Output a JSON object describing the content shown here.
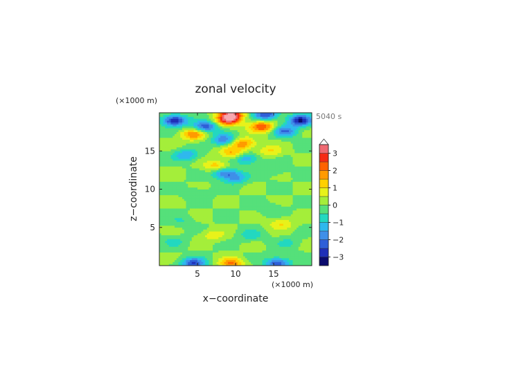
{
  "chart_data": {
    "type": "heatmap",
    "title": "zonal velocity",
    "time_label": "5040 s",
    "xlabel": "x−coordinate",
    "ylabel": "z−coordinate",
    "x_unit": "(×1000 m)",
    "y_unit": "(×1000 m)",
    "xlim": [
      0,
      20
    ],
    "ylim": [
      0,
      20
    ],
    "x_ticks": [
      5,
      10,
      15
    ],
    "x_tick_labels": [
      "5",
      "10",
      "15"
    ],
    "y_ticks": [
      5,
      10,
      15
    ],
    "y_tick_labels": [
      "5",
      "10",
      "15"
    ],
    "colorbar": {
      "levels": [
        -3.5,
        -3,
        -2.5,
        -2,
        -1.5,
        -1,
        -0.5,
        0,
        0.5,
        1,
        1.5,
        2,
        2.5,
        3,
        3.5
      ],
      "colors": [
        "#0b0b6e",
        "#1f2fb8",
        "#2f5fd8",
        "#3f8fe8",
        "#2fb8ee",
        "#22d8c0",
        "#55e07a",
        "#a4ee3a",
        "#e8f21a",
        "#ffd000",
        "#ff9a00",
        "#ff6200",
        "#f52a14",
        "#ef6a72",
        "#f7a8b0"
      ],
      "extend_top": true,
      "tick_values": [
        -3,
        -2,
        -1,
        0,
        1,
        2,
        3
      ],
      "tick_labels": [
        "−3",
        "−2",
        "−1",
        "0",
        "1",
        "2",
        "3"
      ]
    },
    "field_features": [
      {
        "x": 9.5,
        "z": 19.8,
        "value": 3.0
      },
      {
        "x": 9.0,
        "z": 19.0,
        "value": 2.5
      },
      {
        "x": 2.0,
        "z": 19.0,
        "value": -3.0
      },
      {
        "x": 18.5,
        "z": 19.0,
        "value": -3.0
      },
      {
        "x": 14.0,
        "z": 19.8,
        "value": -2.5
      },
      {
        "x": 6.0,
        "z": 18.2,
        "value": -2.5
      },
      {
        "x": 13.5,
        "z": 18.2,
        "value": 2.5
      },
      {
        "x": 16.5,
        "z": 17.6,
        "value": -2.0
      },
      {
        "x": 4.5,
        "z": 17.2,
        "value": 2.0
      },
      {
        "x": 8.5,
        "z": 16.5,
        "value": -2.0
      },
      {
        "x": 11.0,
        "z": 16.0,
        "value": 2.0
      },
      {
        "x": 9.5,
        "z": 14.8,
        "value": 1.5
      },
      {
        "x": 11.5,
        "z": 14.0,
        "value": -1.5
      },
      {
        "x": 7.5,
        "z": 13.0,
        "value": 1.5
      },
      {
        "x": 8.5,
        "z": 12.2,
        "value": -2.0
      },
      {
        "x": 10.0,
        "z": 11.5,
        "value": -1.5
      },
      {
        "x": 14.5,
        "z": 15.0,
        "value": 1.0
      },
      {
        "x": 3.5,
        "z": 14.5,
        "value": -1.5
      },
      {
        "x": 15.0,
        "z": 12.5,
        "value": -0.5
      },
      {
        "x": 5.0,
        "z": 9.5,
        "value": -0.5
      },
      {
        "x": 14.5,
        "z": 7.5,
        "value": -0.5
      },
      {
        "x": 3.0,
        "z": 5.8,
        "value": -0.5
      },
      {
        "x": 16.0,
        "z": 5.5,
        "value": 1.0
      },
      {
        "x": 7.0,
        "z": 4.0,
        "value": 0.8
      },
      {
        "x": 12.0,
        "z": 4.0,
        "value": -0.8
      },
      {
        "x": 17.0,
        "z": 3.0,
        "value": -0.6
      },
      {
        "x": 2.0,
        "z": 3.2,
        "value": -0.6
      },
      {
        "x": 9.5,
        "z": 0.3,
        "value": 2.0
      },
      {
        "x": 4.5,
        "z": 0.3,
        "value": -2.5
      },
      {
        "x": 15.5,
        "z": 0.3,
        "value": -2.5
      }
    ]
  }
}
